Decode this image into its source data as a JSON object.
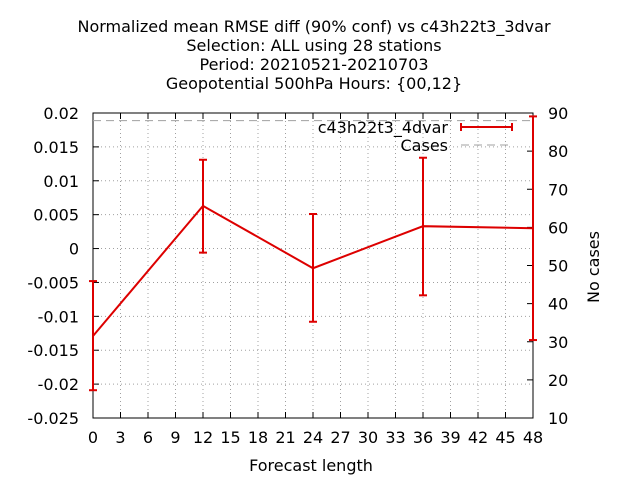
{
  "chart_data": {
    "type": "line",
    "title_lines": [
      "Normalized mean RMSE diff (90% conf) vs c43h22t3_3dvar",
      "Selection: ALL using    28 stations",
      "Period: 20210521-20210703",
      "Geopotential 500hPa   Hours: {00,12}"
    ],
    "xlabel": "Forecast length",
    "ylabel": "",
    "y2label": "No cases",
    "xlim": [
      0,
      48
    ],
    "ylim": [
      -0.025,
      0.02
    ],
    "y2lim": [
      10,
      90
    ],
    "x_ticks": [
      "0",
      "3",
      "6",
      "9",
      "12",
      "15",
      "18",
      "21",
      "24",
      "27",
      "30",
      "33",
      "36",
      "39",
      "42",
      "45",
      "48"
    ],
    "y_ticks": [
      "-0.025",
      "-0.02",
      "-0.015",
      "-0.01",
      "-0.005",
      "0",
      "0.005",
      "0.01",
      "0.015",
      "0.02"
    ],
    "y2_ticks": [
      "10",
      "20",
      "30",
      "40",
      "50",
      "60",
      "70",
      "80",
      "90"
    ],
    "grid": true,
    "legend_position": "top-right",
    "series": [
      {
        "name": "c43h22t3_4dvar",
        "color": "#dd0000",
        "x": [
          0,
          12,
          24,
          36,
          48
        ],
        "y": [
          -0.0129,
          0.0063,
          -0.0029,
          0.0033,
          0.003
        ],
        "err_low": [
          -0.0209,
          -0.0006,
          -0.0108,
          -0.0069,
          -0.0135
        ],
        "err_high": [
          -0.0048,
          0.0131,
          0.0051,
          0.0134,
          0.0195
        ]
      },
      {
        "name": "Cases",
        "color": "#a0a0a0",
        "axis": "y2",
        "x": [
          0,
          12,
          24,
          36,
          48
        ],
        "y": [
          88,
          88,
          88,
          88,
          88
        ]
      }
    ]
  }
}
